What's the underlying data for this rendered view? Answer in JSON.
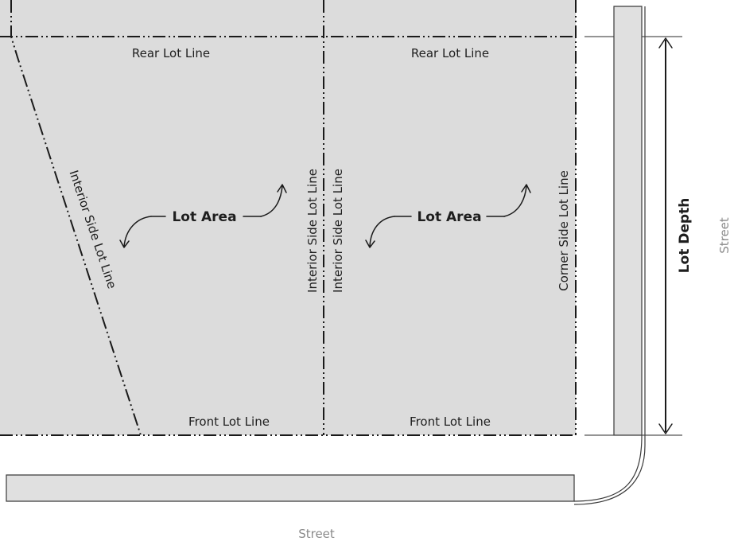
{
  "labels": {
    "rear_lot_line_left": "Rear Lot Line",
    "rear_lot_line_right": "Rear Lot Line",
    "front_lot_line_left": "Front Lot Line",
    "front_lot_line_right": "Front Lot Line",
    "interior_side_lot_line_diagonal": "Interior Side Lot Line",
    "interior_side_lot_line_left_of_divider": "Interior Side Lot Line",
    "interior_side_lot_line_right_of_divider": "Interior Side Lot Line",
    "corner_side_lot_line": "Corner Side Lot Line",
    "lot_area_left": "Lot Area",
    "lot_area_right": "Lot Area",
    "lot_depth": "Lot Depth",
    "street_right": "Street",
    "street_bottom": "Street"
  },
  "colors": {
    "lot_fill": "#dcdcdc",
    "line": "#1a1a1a",
    "street_text": "#8a8a8a",
    "sidewalk_fill": "#e0e0e0"
  }
}
